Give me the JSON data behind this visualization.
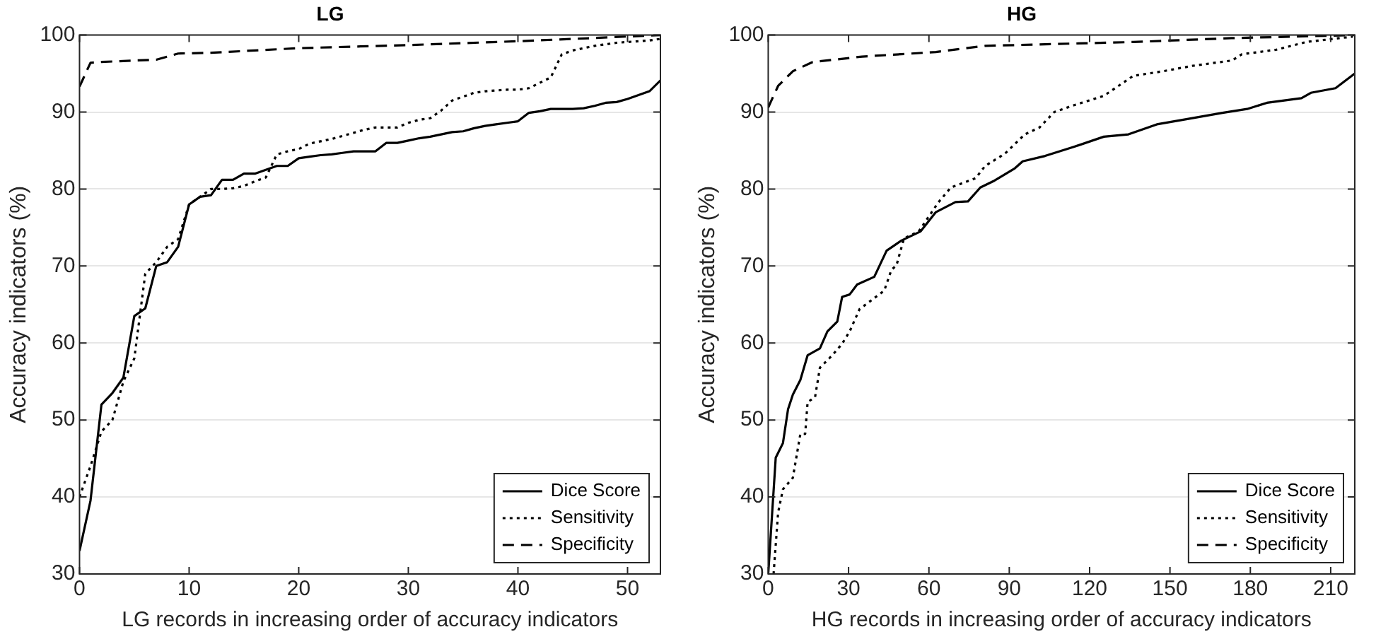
{
  "chart_data": [
    {
      "type": "line",
      "title": "LG",
      "xlabel": "LG records in increasing order of accuracy indicators",
      "ylabel": "Accuracy indicators (%)",
      "xlim": [
        0,
        53
      ],
      "xticks": [
        0,
        10,
        20,
        30,
        40,
        50
      ],
      "ylim": [
        30,
        100
      ],
      "yticks": [
        30,
        40,
        50,
        60,
        70,
        80,
        90,
        100
      ],
      "grid": "y",
      "legend": "bottom right",
      "marker": "none",
      "series": [
        {
          "name": "Dice Score",
          "color": "#000000",
          "line_style": "solid",
          "x": [
            0,
            1,
            2,
            3,
            4,
            5,
            6,
            7,
            8,
            9,
            10,
            11,
            12,
            13,
            14,
            15,
            16,
            17,
            18,
            19,
            20,
            21,
            22,
            23,
            24,
            25,
            26,
            27,
            28,
            29,
            30,
            31,
            32,
            33,
            34,
            35,
            36,
            37,
            38,
            39,
            40,
            41,
            42,
            43,
            44,
            45,
            46,
            47,
            48,
            49,
            50,
            51,
            52,
            53
          ],
          "values": [
            33,
            39.5,
            52,
            53.5,
            55.5,
            63.5,
            64.5,
            70,
            70.5,
            72.5,
            78,
            79,
            79.2,
            81.2,
            81.2,
            82,
            82,
            82.5,
            83,
            83,
            84,
            84.2,
            84.4,
            84.5,
            84.7,
            84.9,
            84.9,
            84.9,
            86,
            86,
            86.3,
            86.6,
            86.8,
            87.1,
            87.4,
            87.5,
            87.9,
            88.2,
            88.4,
            88.6,
            88.8,
            89.9,
            90.1,
            90.4,
            90.4,
            90.4,
            90.5,
            90.8,
            91.2,
            91.3,
            91.7,
            92.2,
            92.7,
            94.1
          ]
        },
        {
          "name": "Sensitivity",
          "color": "#000000",
          "line_style": "dotted",
          "x": [
            0,
            1,
            2,
            3,
            4,
            5,
            6,
            7,
            8,
            9,
            10,
            11,
            12,
            13,
            14,
            15,
            16,
            17,
            18,
            19,
            20,
            21,
            22,
            23,
            24,
            25,
            26,
            27,
            28,
            29,
            30,
            31,
            32,
            33,
            34,
            35,
            36,
            37,
            38,
            39,
            40,
            41,
            42,
            43,
            44,
            45,
            46,
            47,
            48,
            49,
            50,
            51,
            52,
            53
          ],
          "values": [
            40,
            44,
            48.5,
            50,
            55,
            58,
            69,
            70.5,
            72.5,
            73.5,
            78,
            79,
            80,
            80,
            80.1,
            80.4,
            81,
            81.5,
            84.5,
            84.9,
            85.2,
            85.9,
            86.2,
            86.5,
            86.9,
            87.3,
            87.7,
            88,
            88,
            88,
            88.6,
            89,
            89.2,
            90.2,
            91.5,
            92,
            92.5,
            92.7,
            92.8,
            92.9,
            92.9,
            93.1,
            93.8,
            94.5,
            97.5,
            98,
            98.3,
            98.6,
            98.8,
            99,
            99.1,
            99.2,
            99.3,
            99.5
          ]
        },
        {
          "name": "Specificity",
          "color": "#000000",
          "line_style": "dashed",
          "x": [
            0,
            1,
            2,
            5,
            7,
            8,
            9,
            12,
            20,
            30,
            40,
            45,
            53
          ],
          "values": [
            93.3,
            96.4,
            96.5,
            96.7,
            96.8,
            97.2,
            97.6,
            97.7,
            98.3,
            98.7,
            99.2,
            99.5,
            100
          ]
        }
      ]
    },
    {
      "type": "line",
      "title": "HG",
      "xlabel": "HG records in increasing order of accuracy indicators",
      "ylabel": "Accuracy indicators (%)",
      "xlim": [
        0,
        219
      ],
      "xticks": [
        0,
        30,
        60,
        90,
        120,
        150,
        180,
        210
      ],
      "ylim": [
        30,
        100
      ],
      "yticks": [
        30,
        40,
        50,
        60,
        70,
        80,
        90,
        100
      ],
      "grid": "y",
      "legend": "bottom right",
      "marker": "none",
      "series": [
        {
          "name": "Dice Score",
          "color": "#000000",
          "line_style": "solid",
          "x": [
            0,
            2.8,
            5.5,
            7.4,
            9.2,
            12,
            14.7,
            19.3,
            22.1,
            25.8,
            27.6,
            30.4,
            33.2,
            39.6,
            44.2,
            49.7,
            56.9,
            62.6,
            69.9,
            74.6,
            79.2,
            84.5,
            92.1,
            95,
            103.4,
            114.3,
            125.3,
            134.5,
            145.1,
            156.5,
            169.6,
            178.8,
            186.2,
            199.1,
            202.6,
            211.8,
            219
          ],
          "values": [
            30,
            45.1,
            47,
            51.4,
            53.3,
            55.2,
            58.4,
            59.3,
            61.5,
            62.8,
            66,
            66.3,
            67.6,
            68.6,
            72,
            73.3,
            74.5,
            77,
            78.3,
            78.4,
            80.2,
            81.1,
            82.7,
            83.6,
            84.3,
            85.5,
            86.8,
            87.1,
            88.4,
            89.1,
            89.9,
            90.4,
            91.2,
            91.8,
            92.5,
            93.1,
            95
          ]
        },
        {
          "name": "Sensitivity",
          "color": "#000000",
          "line_style": "dotted",
          "x": [
            2,
            3.7,
            5.5,
            9.2,
            12,
            13.8,
            14.7,
            17.5,
            19.3,
            23.9,
            27.6,
            30.4,
            34.1,
            38.7,
            43.3,
            46,
            47.9,
            50.7,
            56.2,
            63.6,
            68.2,
            77.4,
            81,
            88.4,
            95.8,
            101.3,
            106.8,
            114.2,
            125.3,
            130.8,
            136.3,
            147.4,
            158.4,
            173.2,
            176.8,
            189.7,
            200.8,
            218.3
          ],
          "values": [
            30,
            38,
            41,
            42.5,
            48.2,
            48.2,
            52.3,
            53,
            56.8,
            58.4,
            59.9,
            61.5,
            64.4,
            65.6,
            66.8,
            69.5,
            70.1,
            73.6,
            74.5,
            78.3,
            80.2,
            81.4,
            83,
            84.6,
            87.1,
            88,
            90,
            90.9,
            92.1,
            93.4,
            94.7,
            95.3,
            96,
            96.7,
            97.5,
            98.1,
            99.1,
            99.8
          ]
        },
        {
          "name": "Specificity",
          "color": "#000000",
          "line_style": "dashed",
          "x": [
            0,
            3.7,
            9.2,
            16.6,
            35,
            62.6,
            81,
            136.3,
            173,
            219
          ],
          "values": [
            90.6,
            93.4,
            95.3,
            96.5,
            97.2,
            97.8,
            98.6,
            99.1,
            99.6,
            100
          ]
        }
      ]
    }
  ]
}
